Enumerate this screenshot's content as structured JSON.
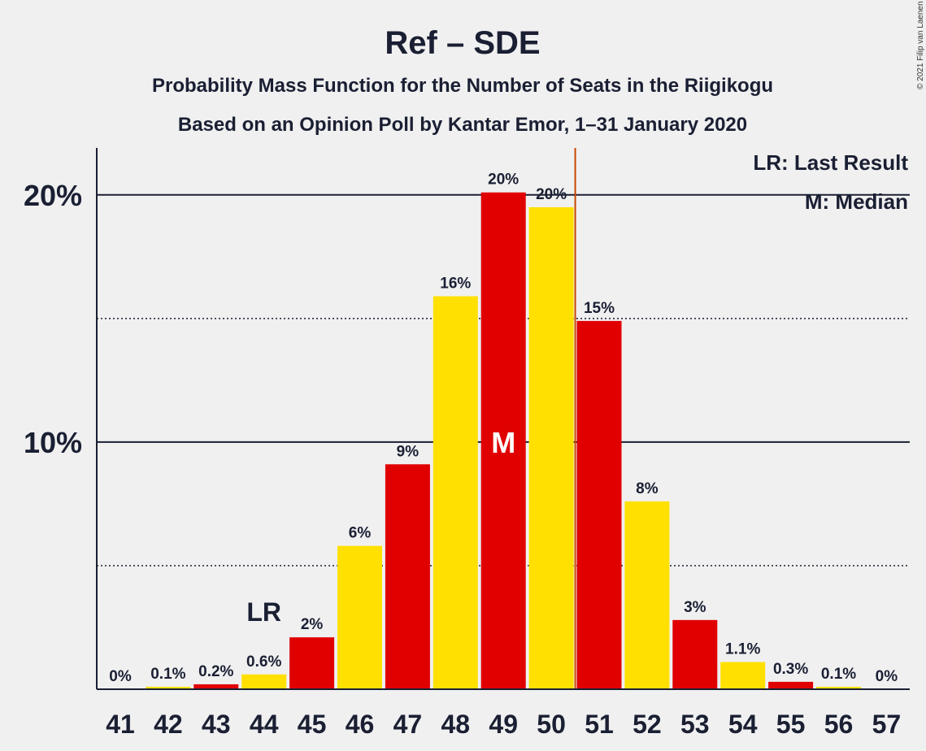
{
  "chart_data": {
    "type": "bar",
    "title": "Ref – SDE",
    "subtitle": "Probability Mass Function for the Number of Seats in the Riigikogu",
    "subtitle2": "Based on an Opinion Poll by Kantar Emor, 1–31 January 2020",
    "copyright": "© 2021 Filip van Laenen",
    "legend": [
      "LR: Last Result",
      "M: Median"
    ],
    "legend_position": "top-right",
    "categories": [
      "41",
      "42",
      "43",
      "44",
      "45",
      "46",
      "47",
      "48",
      "49",
      "50",
      "51",
      "52",
      "53",
      "54",
      "55",
      "56",
      "57"
    ],
    "values": [
      0,
      0.1,
      0.2,
      0.6,
      2.1,
      5.8,
      9.1,
      15.9,
      20.1,
      19.5,
      14.9,
      7.6,
      2.8,
      1.1,
      0.3,
      0.1,
      0
    ],
    "labels": [
      "0%",
      "0.1%",
      "0.2%",
      "0.6%",
      "2%",
      "6%",
      "9%",
      "16%",
      "20%",
      "20%",
      "15%",
      "8%",
      "3%",
      "1.1%",
      "0.3%",
      "0.1%",
      "0%"
    ],
    "bar_colors": [
      "#e00000",
      "#ffe000"
    ],
    "ylim": [
      0,
      21.9
    ],
    "yticks": [
      {
        "value": 10,
        "label": "10%"
      },
      {
        "value": 20,
        "label": "20%"
      }
    ],
    "minor_gridlines": [
      5,
      15
    ],
    "last_result": {
      "seat": "44",
      "marker": "LR"
    },
    "median": {
      "seat": "49",
      "marker": "M"
    },
    "majority_line_after": "50",
    "majority_line_color": "#c84600"
  }
}
